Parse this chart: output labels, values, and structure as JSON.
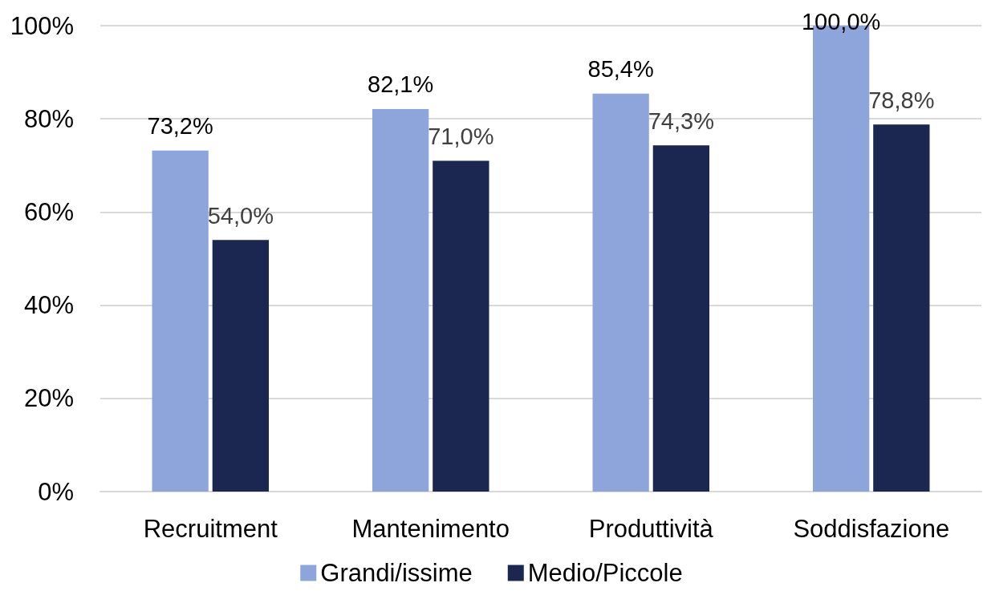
{
  "chart_data": {
    "type": "bar",
    "categories": [
      "Recruitment",
      "Mantenimento",
      "Produttività",
      "Soddisfazione"
    ],
    "series": [
      {
        "name": "Grandi/issime",
        "color": "#8ea5dc",
        "values": [
          73.2,
          82.1,
          85.4,
          100.0
        ],
        "value_labels": [
          "73,2%",
          "82,1%",
          "85,4%",
          "100,0%"
        ]
      },
      {
        "name": "Medio/Piccole",
        "color": "#1b2651",
        "values": [
          54.0,
          71.0,
          74.3,
          78.8
        ],
        "value_labels": [
          "54,0%",
          "71,0%",
          "74,3%",
          "78,8%"
        ]
      }
    ],
    "ylim": [
      0,
      100
    ],
    "yticks": [
      {
        "value": 0,
        "label": "0%"
      },
      {
        "value": 20,
        "label": "20%"
      },
      {
        "value": 40,
        "label": "40%"
      },
      {
        "value": 60,
        "label": "60%"
      },
      {
        "value": 80,
        "label": "80%"
      },
      {
        "value": 100,
        "label": "100%"
      }
    ],
    "grid": "y",
    "legend": "bottom"
  }
}
